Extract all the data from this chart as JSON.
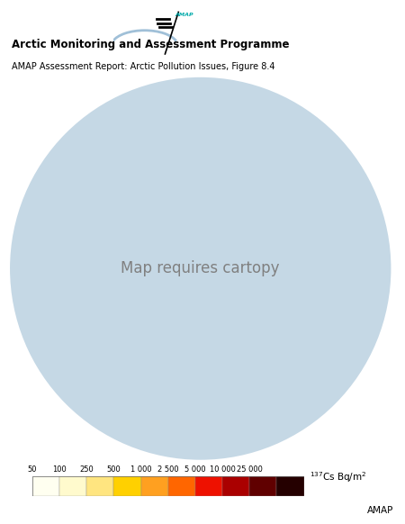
{
  "title_bold": "Arctic Monitoring and Assessment Programme",
  "title_sub": "AMAP Assessment Report: Arctic Pollution Issues, Figure 8.4",
  "colorbar_ticks": [
    50,
    100,
    250,
    500,
    1000,
    2500,
    5000,
    10000,
    25000
  ],
  "colorbar_tick_labels": [
    "50",
    "100",
    "250",
    "500",
    "1 000",
    "2 500",
    "5 000",
    "10 000",
    "25 000"
  ],
  "colorbar_label": "137Cs Bq/m²",
  "colorbar_colors": [
    "#FFFFF0",
    "#FFFACD",
    "#FFE580",
    "#FFD000",
    "#FFA020",
    "#FF6600",
    "#EE1100",
    "#AA0000",
    "#600000",
    "#250000"
  ],
  "ocean_color": "#C5D8E5",
  "background_color": "#FFFFFF",
  "amap_text_color": "#00AAAA",
  "amap_footer": "AMAP",
  "logo_arc_color": "#A0C0D8"
}
